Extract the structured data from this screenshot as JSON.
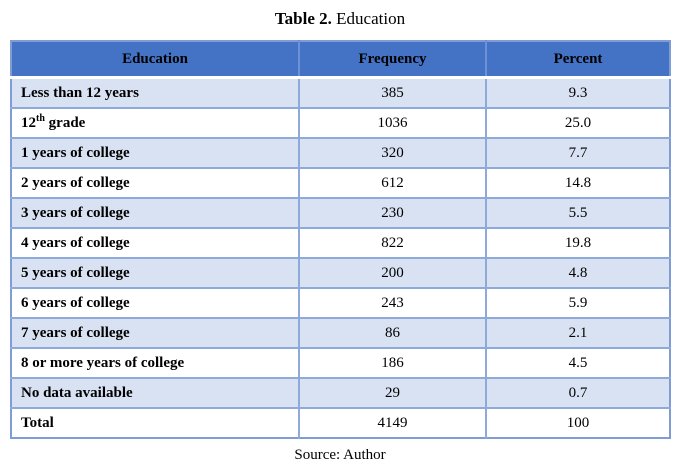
{
  "title": {
    "bold": "Table 2.",
    "normal": " Education"
  },
  "table": {
    "headers": {
      "education": "Education",
      "frequency": "Frequency",
      "percent": "Percent"
    },
    "rows": [
      {
        "education": "Less than 12 years",
        "frequency": "385",
        "percent": "9.3"
      },
      {
        "education_parts": {
          "pre": "12",
          "sup": "th",
          "post": " grade"
        },
        "frequency": "1036",
        "percent": "25.0"
      },
      {
        "education": "1 years of college",
        "frequency": "320",
        "percent": "7.7"
      },
      {
        "education": "2 years of college",
        "frequency": "612",
        "percent": "14.8"
      },
      {
        "education": "3 years of college",
        "frequency": "230",
        "percent": "5.5"
      },
      {
        "education": "4 years of college",
        "frequency": "822",
        "percent": "19.8"
      },
      {
        "education": "5 years of college",
        "frequency": "200",
        "percent": "4.8"
      },
      {
        "education": "6 years of college",
        "frequency": "243",
        "percent": "5.9"
      },
      {
        "education": "7 years of college",
        "frequency": "86",
        "percent": "2.1"
      },
      {
        "education": "8 or more years of college",
        "frequency": "186",
        "percent": "4.5"
      },
      {
        "education": "No data available",
        "frequency": "29",
        "percent": "0.7"
      },
      {
        "education": "Total",
        "frequency": "4149",
        "percent": "100"
      }
    ]
  },
  "source": "Source: Author",
  "colors": {
    "header_bg": "#4472c4",
    "band_row_bg": "#d9e2f3",
    "inner_border": "#8eaadb",
    "outer_border": "#7f9cd5",
    "text": "#000000"
  }
}
